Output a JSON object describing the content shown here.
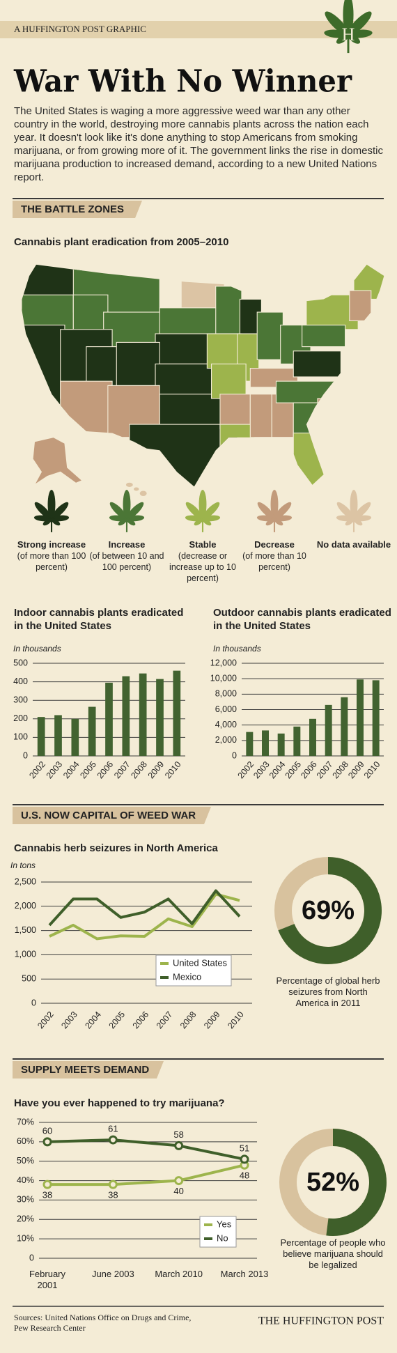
{
  "header": {
    "tag": "A HUFFINGTON POST GRAPHIC",
    "logo": "H"
  },
  "title": "War With No Winner",
  "intro": "The United States is waging a more aggressive weed war than any other country in the world, destroying more cannabis plants across the nation each year. It doesn't look like it's done anything to stop Americans from smoking marijuana, or from growing more of it. The government links the rise in domestic marijuana production to increased demand, according to a new United Nations report.",
  "sections": [
    "THE BATTLE ZONES",
    "U.S. NOW CAPITAL OF WEED WAR",
    "SUPPLY MEETS DEMAND"
  ],
  "map": {
    "title": "Cannabis plant eradication from 2005–2010",
    "legend": [
      {
        "label": "Strong increase",
        "note": "(of more than 100 percent)",
        "color": "#1f3317"
      },
      {
        "label": "Increase",
        "note": "(of between 10 and 100 percent)",
        "color": "#4b7636"
      },
      {
        "label": "Stable",
        "note": "(decrease or increase up to 10 percent)",
        "color": "#9db44c"
      },
      {
        "label": "Decrease",
        "note": "(of more than 10 percent)",
        "color": "#c29b7b"
      },
      {
        "label": "No data available",
        "color": "#dcc4a4"
      }
    ]
  },
  "chart_data": [
    {
      "type": "bar",
      "title": "Indoor cannabis plants eradicated in the United States",
      "y_label": "In thousands",
      "categories": [
        "2002",
        "2003",
        "2004",
        "2005",
        "2006",
        "2007",
        "2008",
        "2009",
        "2010"
      ],
      "values": [
        210,
        220,
        200,
        265,
        395,
        430,
        445,
        415,
        460
      ],
      "color": "#426330",
      "ylim": [
        0,
        500
      ],
      "yticks": [
        0,
        100,
        200,
        300,
        400,
        500
      ],
      "grid": true
    },
    {
      "type": "bar",
      "title": "Outdoor cannabis plants eradicated in the United States",
      "y_label": "In thousands",
      "categories": [
        "2002",
        "2003",
        "2004",
        "2005",
        "2006",
        "2007",
        "2008",
        "2009",
        "2010"
      ],
      "values": [
        3100,
        3300,
        2900,
        3800,
        4800,
        6600,
        7600,
        9900,
        9800
      ],
      "color": "#426330",
      "ylim": [
        0,
        12000
      ],
      "yticks": [
        0,
        {
          "value": 2000,
          "label": "2,000"
        },
        {
          "value": 4000,
          "label": "4,000"
        },
        {
          "value": 6000,
          "label": "6,000"
        },
        {
          "value": 8000,
          "label": "8,000"
        },
        {
          "value": 10000,
          "label": "10,000"
        },
        {
          "value": 12000,
          "label": "12,000"
        }
      ],
      "grid": true
    },
    {
      "type": "line",
      "title": "Cannabis herb seizures in North America",
      "y_label": "In tons",
      "categories": [
        "2002",
        "2003",
        "2004",
        "2005",
        "2006",
        "2007",
        "2008",
        "2009",
        "2010"
      ],
      "series": [
        {
          "name": "United States",
          "color": "#9db44c",
          "values": [
            1380,
            1610,
            1330,
            1390,
            1380,
            1740,
            1580,
            2250,
            2120
          ]
        },
        {
          "name": "Mexico",
          "color": "#3f5f2a",
          "values": [
            1610,
            2150,
            2150,
            1770,
            1880,
            2150,
            1640,
            2320,
            1790
          ]
        }
      ],
      "ylim": [
        0,
        2500
      ],
      "yticks": [
        0,
        500,
        {
          "value": 1000,
          "label": "1,000"
        },
        {
          "value": 1500,
          "label": "1,500"
        },
        {
          "value": 2000,
          "label": "2,000"
        },
        {
          "value": 2500,
          "label": "2,500"
        }
      ],
      "grid": true,
      "legend": "lower right"
    },
    {
      "type": "donut",
      "values": [
        69
      ],
      "value_labels": [
        "69%"
      ],
      "color": "#3f5f2a",
      "track_color": "#d8c29e",
      "caption": "Percentage of global herb seizures from North America in 2011"
    },
    {
      "type": "line",
      "title": "Have you ever happened to try marijuana?",
      "categories": [
        "February 2001",
        "June 2003",
        "March 2010",
        "March 2013"
      ],
      "series": [
        {
          "name": "Yes",
          "color": "#9db44c",
          "values": [
            38,
            38,
            40,
            48
          ]
        },
        {
          "name": "No",
          "color": "#3f5f2a",
          "values": [
            60,
            61,
            58,
            51
          ]
        }
      ],
      "ylim": [
        0,
        70
      ],
      "yticks": [
        0,
        {
          "value": 10,
          "label": "10%"
        },
        {
          "value": 20,
          "label": "20%"
        },
        {
          "value": 30,
          "label": "30%"
        },
        {
          "value": 40,
          "label": "40%"
        },
        {
          "value": 50,
          "label": "50%"
        },
        {
          "value": 60,
          "label": "60%"
        },
        {
          "value": 70,
          "label": "70%"
        }
      ],
      "grid": true,
      "legend": "lower right",
      "markers": true,
      "data_labels": true
    },
    {
      "type": "donut",
      "values": [
        52
      ],
      "value_labels": [
        "52%"
      ],
      "color": "#3f5f2a",
      "track_color": "#d8c29e",
      "caption": "Percentage of people who believe marijuana should be legalized"
    }
  ],
  "sources": "Sources: United Nations Office on Drugs and Crime, Pew Research Center",
  "footer": "THE HUFFINGTON POST"
}
